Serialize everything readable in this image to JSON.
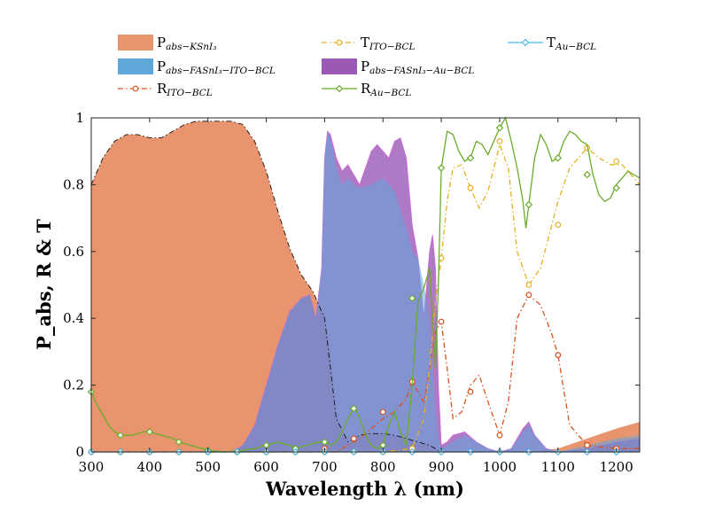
{
  "chart_data": {
    "type": "area",
    "title": "",
    "xlabel": "Wavelength λ (nm)",
    "ylabel": "P_abs, R & T",
    "xlim": [
      300,
      1240
    ],
    "ylim": [
      0,
      1
    ],
    "xticks": [
      300,
      400,
      500,
      600,
      700,
      800,
      900,
      1000,
      1100,
      1200
    ],
    "yticks": [
      0,
      0.2,
      0.4,
      0.6,
      0.8,
      1
    ],
    "xtick_labels": [
      "300",
      "400",
      "500",
      "600",
      "700",
      "800",
      "900",
      "1000",
      "1100",
      "1200"
    ],
    "ytick_labels": [
      "0",
      "0.2",
      "0.4",
      "0.6",
      "0.8",
      "1"
    ],
    "grid": false,
    "legend_position": "top",
    "colors": {
      "ksni3": "#e8956f",
      "fasni3_ito": "#5fa6da",
      "fasni3_au": "#9b59b6",
      "t_ito": "#e8b020",
      "t_au": "#4fb8e8",
      "r_ito": "#d9531e",
      "r_au": "#6aac2a"
    },
    "legend": [
      {
        "key": "ksni3",
        "main": "P",
        "sub": "abs−KSnI₃",
        "style": "patch"
      },
      {
        "key": "t_ito",
        "main": "T",
        "sub": "ITO−BCL",
        "style": "dashdot-circle"
      },
      {
        "key": "t_au",
        "main": "T",
        "sub": "Au−BCL",
        "style": "solid-diamond"
      },
      {
        "key": "fasni3_ito",
        "main": "P",
        "sub": "abs−FASnI₃−ITO−BCL",
        "style": "patch"
      },
      {
        "key": "fasni3_au",
        "main": "P",
        "sub": "abs−FASnI₃−Au−BCL",
        "style": "patch"
      },
      {
        "key": "r_ito",
        "main": "R",
        "sub": "ITO−BCL",
        "style": "dashdot-circle"
      },
      {
        "key": "r_au",
        "main": "R",
        "sub": "Au−BCL",
        "style": "solid-diamond"
      }
    ],
    "series": [
      {
        "key": "ksni3",
        "name": "P_abs-KSnI3",
        "x": [
          300,
          320,
          340,
          360,
          380,
          400,
          420,
          440,
          460,
          480,
          500,
          520,
          540,
          560,
          580,
          600,
          620,
          640,
          660,
          680,
          695,
          700,
          710,
          720,
          740,
          760,
          780,
          800,
          820,
          840,
          860,
          880,
          900,
          950,
          1000,
          1050,
          1100,
          1150,
          1200,
          1240
        ],
        "values": [
          0.8,
          0.88,
          0.93,
          0.95,
          0.95,
          0.94,
          0.94,
          0.96,
          0.98,
          0.99,
          0.99,
          0.99,
          0.99,
          0.98,
          0.93,
          0.84,
          0.72,
          0.61,
          0.53,
          0.48,
          0.42,
          0.4,
          0.3,
          0.1,
          0.03,
          0.05,
          0.055,
          0.055,
          0.05,
          0.04,
          0.03,
          0.02,
          0.0,
          0.0,
          0.0,
          0.0,
          0.01,
          0.04,
          0.07,
          0.09
        ]
      },
      {
        "key": "fasni3_ito",
        "name": "P_abs-FASnI3-ITO-BCL",
        "x": [
          540,
          560,
          580,
          600,
          620,
          640,
          660,
          675,
          685,
          695,
          700,
          705,
          710,
          720,
          730,
          740,
          750,
          760,
          780,
          800,
          820,
          840,
          850,
          860,
          870,
          880,
          890,
          895,
          900,
          910,
          920,
          940,
          960,
          980,
          1000,
          1020,
          1040,
          1050,
          1060,
          1080,
          1100,
          1150,
          1200,
          1240
        ],
        "values": [
          0.0,
          0.02,
          0.08,
          0.2,
          0.32,
          0.42,
          0.46,
          0.47,
          0.4,
          0.55,
          0.88,
          0.96,
          0.94,
          0.85,
          0.8,
          0.82,
          0.8,
          0.79,
          0.8,
          0.82,
          0.78,
          0.67,
          0.6,
          0.58,
          0.5,
          0.4,
          0.12,
          0.04,
          0.01,
          0.02,
          0.03,
          0.05,
          0.03,
          0.01,
          0.0,
          0.01,
          0.06,
          0.08,
          0.05,
          0.01,
          0.0,
          0.02,
          0.04,
          0.05
        ]
      },
      {
        "key": "fasni3_au",
        "name": "P_abs-FASnI3-Au-BCL",
        "x": [
          540,
          560,
          580,
          600,
          620,
          640,
          660,
          675,
          685,
          695,
          700,
          705,
          710,
          720,
          730,
          740,
          760,
          780,
          790,
          800,
          810,
          820,
          830,
          840,
          850,
          860,
          870,
          880,
          885,
          890,
          895,
          900,
          910,
          920,
          940,
          960,
          980,
          1000,
          1020,
          1040,
          1050,
          1060,
          1080,
          1100,
          1150,
          1200,
          1240
        ],
        "values": [
          0.0,
          0.02,
          0.08,
          0.2,
          0.32,
          0.42,
          0.46,
          0.47,
          0.4,
          0.55,
          0.88,
          0.96,
          0.95,
          0.88,
          0.84,
          0.86,
          0.8,
          0.9,
          0.92,
          0.9,
          0.88,
          0.93,
          0.94,
          0.88,
          0.68,
          0.58,
          0.4,
          0.6,
          0.65,
          0.55,
          0.2,
          0.02,
          0.03,
          0.05,
          0.06,
          0.03,
          0.01,
          0.0,
          0.01,
          0.07,
          0.09,
          0.05,
          0.01,
          0.0,
          0.01,
          0.03,
          0.04
        ]
      },
      {
        "key": "t_ito",
        "name": "T_ITO-BCL",
        "x": [
          300,
          800,
          850,
          870,
          880,
          890,
          900,
          910,
          920,
          935,
          950,
          965,
          980,
          1000,
          1015,
          1030,
          1050,
          1070,
          1085,
          1100,
          1120,
          1150,
          1170,
          1190,
          1210,
          1240
        ],
        "values": [
          0.0,
          0.0,
          0.01,
          0.1,
          0.25,
          0.45,
          0.58,
          0.75,
          0.85,
          0.86,
          0.79,
          0.73,
          0.78,
          0.92,
          0.85,
          0.6,
          0.5,
          0.55,
          0.65,
          0.75,
          0.85,
          0.91,
          0.88,
          0.86,
          0.86,
          0.8
        ],
        "marker_x": [
          300,
          350,
          400,
          450,
          500,
          550,
          600,
          650,
          700,
          750,
          800,
          850,
          900,
          950,
          1000,
          1050,
          1100,
          1150,
          1200
        ],
        "marker_y": [
          0,
          0,
          0,
          0,
          0,
          0,
          0,
          0,
          0,
          0,
          0,
          0.01,
          0.58,
          0.79,
          0.93,
          0.5,
          0.68,
          0.91,
          0.87
        ]
      },
      {
        "key": "r_ito",
        "name": "R_ITO-BCL",
        "x": [
          300,
          700,
          720,
          740,
          760,
          780,
          800,
          820,
          840,
          850,
          860,
          870,
          880,
          890,
          900,
          910,
          920,
          935,
          950,
          965,
          980,
          1000,
          1015,
          1030,
          1050,
          1070,
          1090,
          1100,
          1120,
          1150,
          1200,
          1240
        ],
        "values": [
          0.0,
          0.0,
          0.0,
          0.02,
          0.04,
          0.07,
          0.1,
          0.12,
          0.16,
          0.21,
          0.18,
          0.15,
          0.25,
          0.36,
          0.39,
          0.25,
          0.1,
          0.12,
          0.2,
          0.23,
          0.15,
          0.05,
          0.15,
          0.4,
          0.47,
          0.44,
          0.35,
          0.29,
          0.08,
          0.02,
          0.01,
          0.01
        ],
        "marker_x": [
          300,
          350,
          400,
          450,
          500,
          550,
          600,
          650,
          700,
          750,
          800,
          850,
          900,
          950,
          1000,
          1050,
          1100,
          1150,
          1200
        ],
        "marker_y": [
          0,
          0,
          0,
          0,
          0,
          0,
          0,
          0,
          0.01,
          0.04,
          0.12,
          0.21,
          0.39,
          0.18,
          0.05,
          0.47,
          0.29,
          0.02,
          0.01
        ]
      },
      {
        "key": "t_au",
        "name": "T_Au-BCL",
        "x": [
          300,
          1240
        ],
        "values": [
          0.0,
          0.0
        ],
        "marker_x": [
          300,
          350,
          400,
          450,
          500,
          550,
          600,
          650,
          700,
          750,
          800,
          850,
          900,
          950,
          1000,
          1050,
          1100,
          1150,
          1200
        ],
        "marker_y": [
          0,
          0,
          0,
          0,
          0,
          0,
          0,
          0,
          0,
          0,
          0,
          0,
          0,
          0,
          0,
          0,
          0,
          0,
          0
        ]
      },
      {
        "key": "r_au",
        "name": "R_Au-BCL",
        "x": [
          300,
          310,
          320,
          330,
          340,
          350,
          370,
          390,
          400,
          420,
          440,
          450,
          470,
          490,
          500,
          530,
          560,
          580,
          600,
          620,
          640,
          650,
          670,
          690,
          700,
          710,
          720,
          730,
          740,
          750,
          755,
          760,
          770,
          780,
          790,
          800,
          810,
          820,
          830,
          840,
          850,
          860,
          870,
          880,
          890,
          895,
          900,
          910,
          920,
          930,
          940,
          950,
          960,
          970,
          980,
          990,
          1000,
          1010,
          1020,
          1030,
          1040,
          1045,
          1050,
          1060,
          1070,
          1080,
          1090,
          1100,
          1110,
          1120,
          1130,
          1140,
          1150,
          1160,
          1170,
          1180,
          1190,
          1200,
          1210,
          1220,
          1230,
          1240
        ],
        "values": [
          0.18,
          0.14,
          0.11,
          0.08,
          0.06,
          0.05,
          0.05,
          0.06,
          0.06,
          0.05,
          0.04,
          0.03,
          0.02,
          0.01,
          0.005,
          0.0,
          0.005,
          0.01,
          0.02,
          0.03,
          0.02,
          0.01,
          0.02,
          0.03,
          0.03,
          0.02,
          0.03,
          0.06,
          0.1,
          0.13,
          0.12,
          0.1,
          0.05,
          0.02,
          0.01,
          0.02,
          0.08,
          0.12,
          0.06,
          0.02,
          0.2,
          0.45,
          0.49,
          0.55,
          0.25,
          0.5,
          0.85,
          0.96,
          0.95,
          0.9,
          0.87,
          0.88,
          0.93,
          0.92,
          0.89,
          0.93,
          0.97,
          1.0,
          0.93,
          0.85,
          0.75,
          0.67,
          0.74,
          0.88,
          0.95,
          0.92,
          0.87,
          0.88,
          0.93,
          0.96,
          0.95,
          0.93,
          0.92,
          0.83,
          0.77,
          0.75,
          0.76,
          0.8,
          0.82,
          0.84,
          0.83,
          0.82
        ],
        "marker_x": [
          300,
          350,
          400,
          450,
          500,
          550,
          600,
          650,
          700,
          750,
          800,
          850,
          900,
          950,
          1000,
          1050,
          1100,
          1150,
          1200
        ],
        "marker_y": [
          0.18,
          0.05,
          0.06,
          0.03,
          0.005,
          0.0,
          0.02,
          0.01,
          0.03,
          0.13,
          0.02,
          0.46,
          0.85,
          0.88,
          0.97,
          0.74,
          0.88,
          0.83,
          0.79
        ]
      },
      {
        "key": "envelope",
        "name": "dash-dot envelope",
        "x": [
          300,
          320,
          340,
          360,
          380,
          400,
          420,
          440,
          460,
          480,
          500,
          520,
          540,
          560,
          580,
          600,
          620,
          640,
          660,
          680,
          695,
          700,
          720,
          740,
          760,
          780,
          800,
          820,
          840,
          860,
          880,
          900
        ],
        "values": [
          0.8,
          0.88,
          0.93,
          0.95,
          0.95,
          0.94,
          0.94,
          0.96,
          0.98,
          0.99,
          0.99,
          0.99,
          0.99,
          0.98,
          0.93,
          0.84,
          0.72,
          0.61,
          0.53,
          0.48,
          0.42,
          0.4,
          0.1,
          0.03,
          0.05,
          0.055,
          0.055,
          0.05,
          0.04,
          0.03,
          0.02,
          0.0
        ]
      }
    ]
  }
}
